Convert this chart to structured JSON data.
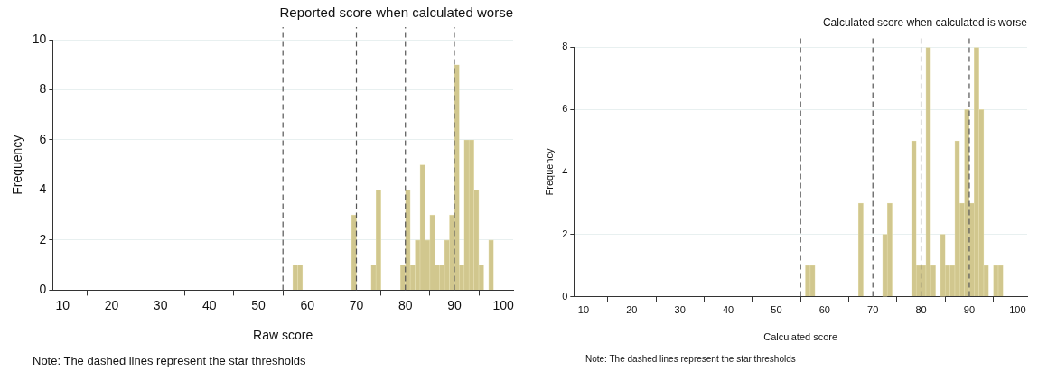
{
  "chart_data": [
    {
      "type": "histogram",
      "title": "Reported score when calculated worse",
      "xlabel": "Raw score",
      "ylabel": "Frequency",
      "bins": [
        55,
        56,
        57,
        58,
        59,
        60,
        61,
        62,
        63,
        64,
        65,
        66,
        67,
        68,
        69,
        70,
        71,
        72,
        73,
        74,
        75,
        76,
        77,
        78,
        79,
        80,
        81,
        82,
        83,
        84,
        85,
        86,
        87,
        88,
        89,
        90,
        91,
        92,
        93,
        94,
        95,
        96,
        97,
        98
      ],
      "values": [
        0,
        0,
        1,
        1,
        0,
        0,
        0,
        0,
        0,
        0,
        0,
        0,
        0,
        0,
        3,
        0,
        0,
        0,
        1,
        4,
        0,
        0,
        0,
        0,
        1,
        4,
        1,
        2,
        5,
        2,
        3,
        1,
        1,
        2,
        3,
        9,
        1,
        6,
        6,
        4,
        1,
        0,
        2
      ],
      "color": "#d1c78e",
      "xlim": [
        8,
        102
      ],
      "xticks": [
        10,
        20,
        30,
        40,
        50,
        60,
        70,
        80,
        90,
        100
      ],
      "ylim": [
        0,
        10
      ],
      "yticks": [
        0,
        2,
        4,
        6,
        8,
        10
      ],
      "grid": "y",
      "ref_lines": [
        {
          "axis": "x",
          "value": 55,
          "color": "#555555",
          "line_style": "dashed"
        },
        {
          "axis": "x",
          "value": 70,
          "color": "#555555",
          "line_style": "dashed"
        },
        {
          "axis": "x",
          "value": 80,
          "color": "#555555",
          "line_style": "dashed"
        },
        {
          "axis": "x",
          "value": 90,
          "color": "#555555",
          "line_style": "dashed"
        }
      ],
      "annotations": [
        "Note: The dashed lines represent the star thresholds"
      ]
    },
    {
      "type": "histogram",
      "title": "Calculated score when calculated is worse",
      "xlabel": "Calculated score",
      "ylabel": "Frequency",
      "bins": [
        56,
        57,
        58,
        59,
        60,
        61,
        62,
        63,
        64,
        65,
        66,
        67,
        68,
        69,
        70,
        71,
        72,
        73,
        74,
        75,
        76,
        77,
        78,
        79,
        80,
        81,
        82,
        83,
        84,
        85,
        86,
        87,
        88,
        89,
        90,
        91,
        92,
        93,
        94,
        95,
        96,
        97
      ],
      "values": [
        1,
        1,
        0,
        0,
        0,
        0,
        0,
        0,
        0,
        0,
        0,
        3,
        0,
        0,
        0,
        0,
        2,
        3,
        0,
        0,
        0,
        0,
        5,
        1,
        1,
        8,
        1,
        0,
        2,
        1,
        1,
        5,
        3,
        6,
        3,
        8,
        6,
        1,
        0,
        1,
        1
      ],
      "color": "#d1c78e",
      "xlim": [
        8,
        102
      ],
      "xticks": [
        10,
        20,
        30,
        40,
        50,
        60,
        70,
        80,
        90,
        100
      ],
      "ylim": [
        0,
        8
      ],
      "yticks": [
        0,
        2,
        4,
        6,
        8
      ],
      "grid": "y",
      "ref_lines": [
        {
          "axis": "x",
          "value": 55,
          "color": "#555555",
          "line_style": "dashed"
        },
        {
          "axis": "x",
          "value": 70,
          "color": "#555555",
          "line_style": "dashed"
        },
        {
          "axis": "x",
          "value": 80,
          "color": "#555555",
          "line_style": "dashed"
        },
        {
          "axis": "x",
          "value": 90,
          "color": "#555555",
          "line_style": "dashed"
        }
      ],
      "annotations": [
        "Note: The dashed lines represent the star thresholds"
      ]
    }
  ]
}
